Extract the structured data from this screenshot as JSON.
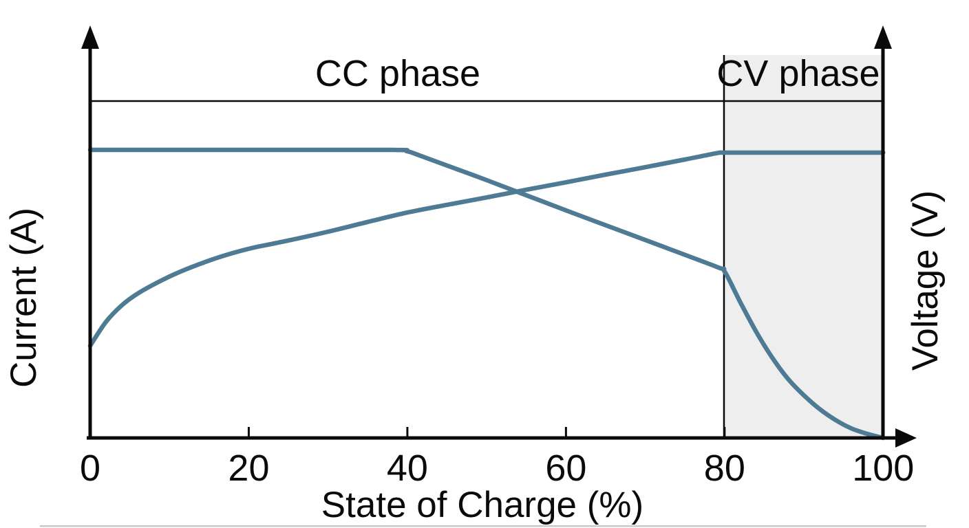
{
  "figure": {
    "background": "#ffffff",
    "curve_color": "#4e7b93",
    "axis_color": "#0a0a0a",
    "cv_region_fill": "#eeeeee"
  },
  "chart_data": {
    "type": "line",
    "title": "",
    "xlabel": "State of Charge (%)",
    "ylabel_left": "Current (A)",
    "ylabel_right": "Voltage (V)",
    "xlim": [
      0,
      100
    ],
    "x_ticks": [
      "0",
      "20",
      "40",
      "60",
      "80",
      "100"
    ],
    "y_ticks": "none (qualitative axes)",
    "grid": false,
    "legend": "none",
    "annotations": [
      {
        "label": "CC phase",
        "x_range": [
          0,
          80
        ],
        "shaded": false
      },
      {
        "label": "CV phase",
        "x_range": [
          80,
          100
        ],
        "shaded": true
      }
    ],
    "reference_lines": [
      {
        "name": "max-level-line",
        "orientation": "horizontal",
        "meaning": "CC current level / CV voltage limit marker"
      },
      {
        "name": "cc-cv-boundary",
        "orientation": "vertical",
        "x": 80
      }
    ],
    "series": [
      {
        "name": "Current",
        "axis": "left",
        "unit": "A",
        "scale": "relative to constant-current level (1.0 = CC plateau, 0 = zero current)",
        "x": [
          0,
          20,
          38,
          40,
          42,
          50,
          60,
          70,
          79,
          80,
          82,
          84,
          86,
          88,
          90,
          92,
          94,
          96,
          98,
          100
        ],
        "y_rel": [
          1.0,
          1.0,
          1.0,
          0.995,
          0.976,
          0.895,
          0.79,
          0.687,
          0.594,
          0.578,
          0.47,
          0.368,
          0.279,
          0.205,
          0.148,
          0.1,
          0.062,
          0.033,
          0.014,
          0.0
        ]
      },
      {
        "name": "Voltage",
        "axis": "right",
        "unit": "V",
        "scale": "relative to constant-voltage plateau (1.0 = CV limit)",
        "x": [
          0,
          2,
          4,
          6,
          9,
          12,
          16,
          20,
          25,
          30,
          35,
          40,
          45,
          50,
          55,
          60,
          65,
          70,
          75,
          79,
          80,
          85,
          92,
          100
        ],
        "y_rel": [
          0.323,
          0.407,
          0.465,
          0.506,
          0.552,
          0.59,
          0.631,
          0.663,
          0.692,
          0.723,
          0.757,
          0.79,
          0.817,
          0.843,
          0.87,
          0.896,
          0.923,
          0.949,
          0.976,
          0.998,
          1.0,
          1.0,
          1.0,
          1.0
        ]
      }
    ]
  }
}
